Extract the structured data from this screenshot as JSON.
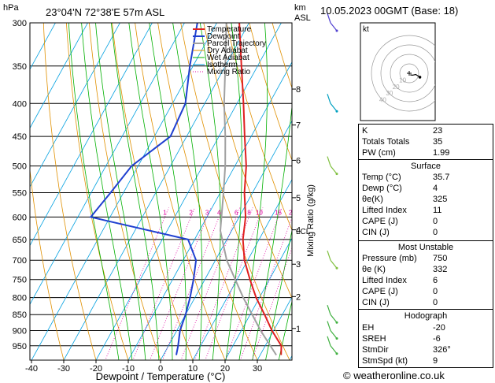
{
  "header": {
    "location": "23°04'N  72°38'E  57m  ASL",
    "datetime": "10.05.2023  00GMT  (Base: 18)",
    "hpa_label": "hPa",
    "km_label": "km",
    "asl_label": "ASL",
    "credit": "© weatheronline.co.uk"
  },
  "chart_data": {
    "type": "line",
    "chart_kind": "skew-T log-P sounding",
    "xlabel": "Dewpoint / Temperature (°C)",
    "ylabel": "hPa",
    "right_axis_label": "Mixing Ratio (g/kg)",
    "xlim": [
      -40,
      40
    ],
    "ylim": [
      1000,
      300
    ],
    "x_ticks": [
      -40,
      -30,
      -20,
      -10,
      0,
      10,
      20,
      30
    ],
    "pressure_levels": [
      300,
      350,
      400,
      450,
      500,
      550,
      600,
      650,
      700,
      750,
      800,
      850,
      900,
      950
    ],
    "km_ticks": [
      {
        "km": "8",
        "p": 380
      },
      {
        "km": "7",
        "p": 432
      },
      {
        "km": "6",
        "p": 490
      },
      {
        "km": "5",
        "p": 560
      },
      {
        "km": "4",
        "p": 628
      },
      {
        "km": "3",
        "p": 710
      },
      {
        "km": "2",
        "p": 797
      },
      {
        "km": "1",
        "p": 893
      }
    ],
    "lcl_label": "LCL",
    "lcl_pressure": 630,
    "mixing_ratio_labels": [
      "1",
      "2",
      "3",
      "4",
      "6",
      "8",
      "10",
      "15",
      "20",
      "25"
    ],
    "mixing_ratio_values": [
      1,
      2,
      3,
      4,
      6,
      8,
      10,
      15,
      20,
      25
    ],
    "legend": [
      "Temperature",
      "Dewpoint",
      "Parcel Trajectory",
      "Dry Adiabat",
      "Wet Adiabat",
      "Isotherm",
      "Mixing Ratio"
    ],
    "colors": {
      "temperature": "#e02020",
      "dewpoint": "#2040d0",
      "parcel": "#a0a0a0",
      "dry_adiabat": "#e09000",
      "wet_adiabat": "#00b000",
      "isotherm": "#00a0e0",
      "mixing_ratio": "#e000a0"
    },
    "temperature": [
      {
        "p": 982,
        "t": 36.5
      },
      {
        "p": 950,
        "t": 35
      },
      {
        "p": 900,
        "t": 29.5
      },
      {
        "p": 850,
        "t": 24.5
      },
      {
        "p": 800,
        "t": 19
      },
      {
        "p": 750,
        "t": 14
      },
      {
        "p": 700,
        "t": 9
      },
      {
        "p": 650,
        "t": 5
      },
      {
        "p": 600,
        "t": 2
      },
      {
        "p": 550,
        "t": -2.5
      },
      {
        "p": 500,
        "t": -6.5
      },
      {
        "p": 450,
        "t": -12
      },
      {
        "p": 400,
        "t": -18
      },
      {
        "p": 350,
        "t": -25
      },
      {
        "p": 300,
        "t": -33
      }
    ],
    "dewpoint": [
      {
        "p": 982,
        "t": 4
      },
      {
        "p": 950,
        "t": 3
      },
      {
        "p": 900,
        "t": 1
      },
      {
        "p": 850,
        "t": 0
      },
      {
        "p": 800,
        "t": -1.5
      },
      {
        "p": 750,
        "t": -3.5
      },
      {
        "p": 700,
        "t": -6
      },
      {
        "p": 650,
        "t": -12
      },
      {
        "p": 600,
        "t": -46
      },
      {
        "p": 550,
        "t": -44
      },
      {
        "p": 500,
        "t": -42
      },
      {
        "p": 450,
        "t": -35
      },
      {
        "p": 400,
        "t": -36
      },
      {
        "p": 350,
        "t": -41
      },
      {
        "p": 300,
        "t": -46
      }
    ],
    "parcel": [
      {
        "p": 982,
        "t": 35
      },
      {
        "p": 900,
        "t": 26
      },
      {
        "p": 800,
        "t": 15
      },
      {
        "p": 700,
        "t": 3.5
      },
      {
        "p": 630,
        "t": -3.5
      },
      {
        "p": 550,
        "t": -9
      },
      {
        "p": 500,
        "t": -13
      },
      {
        "p": 450,
        "t": -18
      },
      {
        "p": 400,
        "t": -24
      },
      {
        "p": 350,
        "t": -30
      },
      {
        "p": 300,
        "t": -37
      }
    ],
    "wind_barbs": [
      {
        "p": 300,
        "color": "#5040d0"
      },
      {
        "p": 400,
        "color": "#00a0c0"
      },
      {
        "p": 500,
        "color": "#80c040"
      },
      {
        "p": 700,
        "color": "#80c040"
      },
      {
        "p": 850,
        "color": "#40b040"
      },
      {
        "p": 900,
        "color": "#40b040"
      },
      {
        "p": 950,
        "color": "#40b040"
      }
    ]
  },
  "hodograph": {
    "unit_label": "kt",
    "ring_labels": [
      "10",
      "20",
      "30",
      "40"
    ],
    "trace": [
      {
        "dir": 326,
        "spd": 2
      },
      {
        "dir": 300,
        "spd": 4
      },
      {
        "dir": 280,
        "spd": 7
      },
      {
        "dir": 290,
        "spd": 12
      }
    ]
  },
  "indices": {
    "rows": [
      {
        "label": "K",
        "value": "23"
      },
      {
        "label": "Totals Totals",
        "value": "35"
      },
      {
        "label": "PW (cm)",
        "value": "1.99"
      }
    ]
  },
  "surface": {
    "title": "Surface",
    "rows": [
      {
        "label": "Temp (°C)",
        "value": "35.7"
      },
      {
        "label": "Dewp (°C)",
        "value": "4"
      },
      {
        "label": "θe(K)",
        "value": "325"
      },
      {
        "label": "Lifted Index",
        "value": "11"
      },
      {
        "label": "CAPE (J)",
        "value": "0"
      },
      {
        "label": "CIN (J)",
        "value": "0"
      }
    ]
  },
  "most_unstable": {
    "title": "Most Unstable",
    "rows": [
      {
        "label": "Pressure (mb)",
        "value": "750"
      },
      {
        "label": "θe (K)",
        "value": "332"
      },
      {
        "label": "Lifted Index",
        "value": "6"
      },
      {
        "label": "CAPE (J)",
        "value": "0"
      },
      {
        "label": "CIN (J)",
        "value": "0"
      }
    ]
  },
  "hodo_table": {
    "title": "Hodograph",
    "rows": [
      {
        "label": "EH",
        "value": "-20"
      },
      {
        "label": "SREH",
        "value": "-6"
      },
      {
        "label": "StmDir",
        "value": "326°"
      },
      {
        "label": "StmSpd (kt)",
        "value": "9"
      }
    ]
  }
}
